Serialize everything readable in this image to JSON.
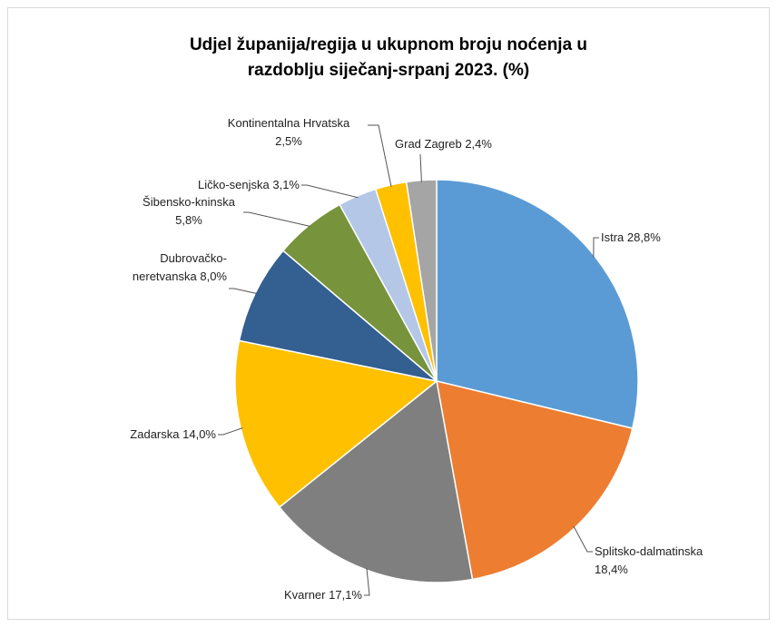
{
  "chart_data": {
    "type": "pie",
    "title": "Udjel županija/regija u ukupnom broju noćenja u razdoblju siječanj-srpanj 2023. (%)",
    "categories": [
      "Istra",
      "Splitsko-dalmatinska",
      "Kvarner",
      "Zadarska",
      "Dubrovačko-neretvanska",
      "Šibensko-kninska",
      "Ličko-senjska",
      "Kontinentalna Hrvatska",
      "Grad Zagreb"
    ],
    "values": [
      28.8,
      18.4,
      17.1,
      14.0,
      8.0,
      5.8,
      3.1,
      2.5,
      2.4
    ],
    "value_labels": [
      "28,8%",
      "18,4%",
      "17,1%",
      "14,0%",
      "8,0%",
      "5,8%",
      "3,1%",
      "2,5%",
      "2,4%"
    ],
    "colors": [
      "#5b9bd5",
      "#ed7d31",
      "#7f7f7f",
      "#ffc000",
      "#335f91",
      "#77933c",
      "#b4c7e7",
      "#ffc000",
      "#a5a5a5"
    ]
  }
}
